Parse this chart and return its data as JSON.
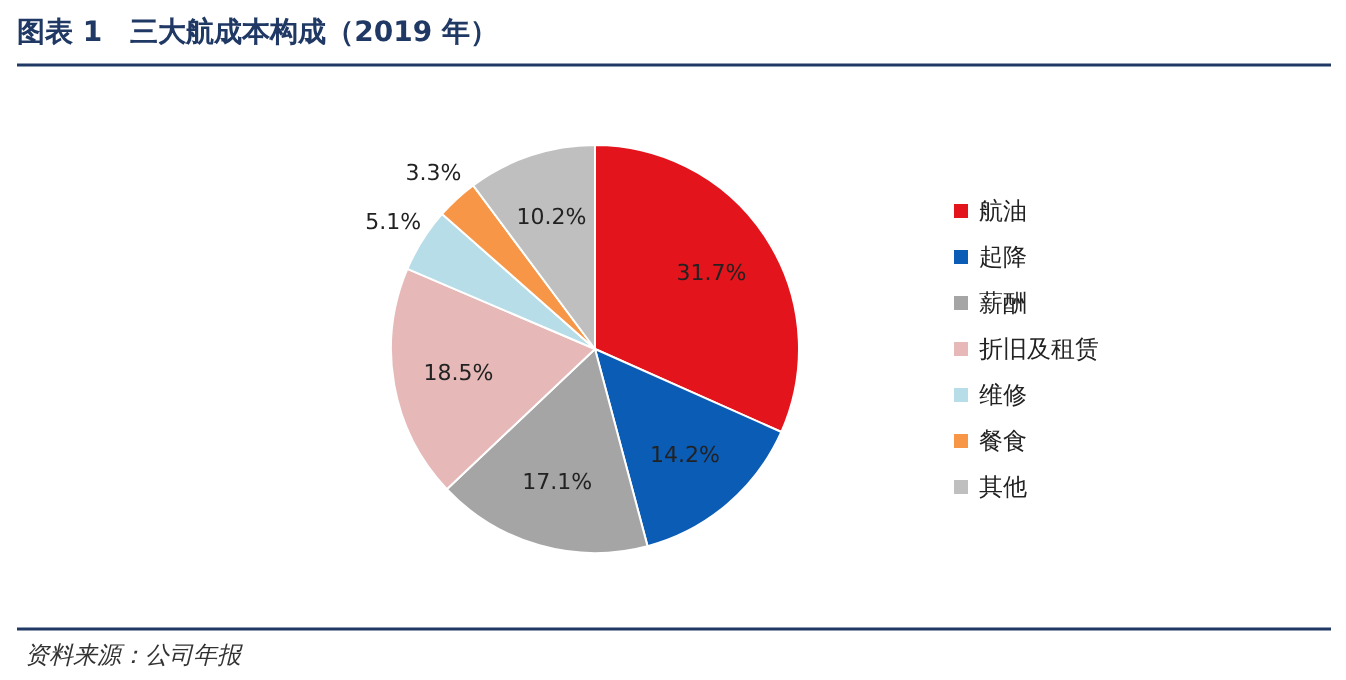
{
  "chart_data": {
    "type": "pie",
    "title": "图表 1　三大航成本构成（2019 年）",
    "categories": [
      "航油",
      "起降",
      "薪酬",
      "折旧及租赁",
      "维修",
      "餐食",
      "其他"
    ],
    "values": [
      31.7,
      14.2,
      17.1,
      18.5,
      5.1,
      3.3,
      10.2
    ],
    "value_labels": [
      "31.7%",
      "14.2%",
      "17.1%",
      "18.5%",
      "5.1%",
      "3.3%",
      "10.2%"
    ],
    "colors": [
      "#e3141c",
      "#0a5cb5",
      "#a5a5a5",
      "#e6b9b8",
      "#b7dde8",
      "#f79646",
      "#bfbfbf"
    ],
    "legend": "right",
    "annotations": [
      "资料来源：公司年报"
    ]
  }
}
